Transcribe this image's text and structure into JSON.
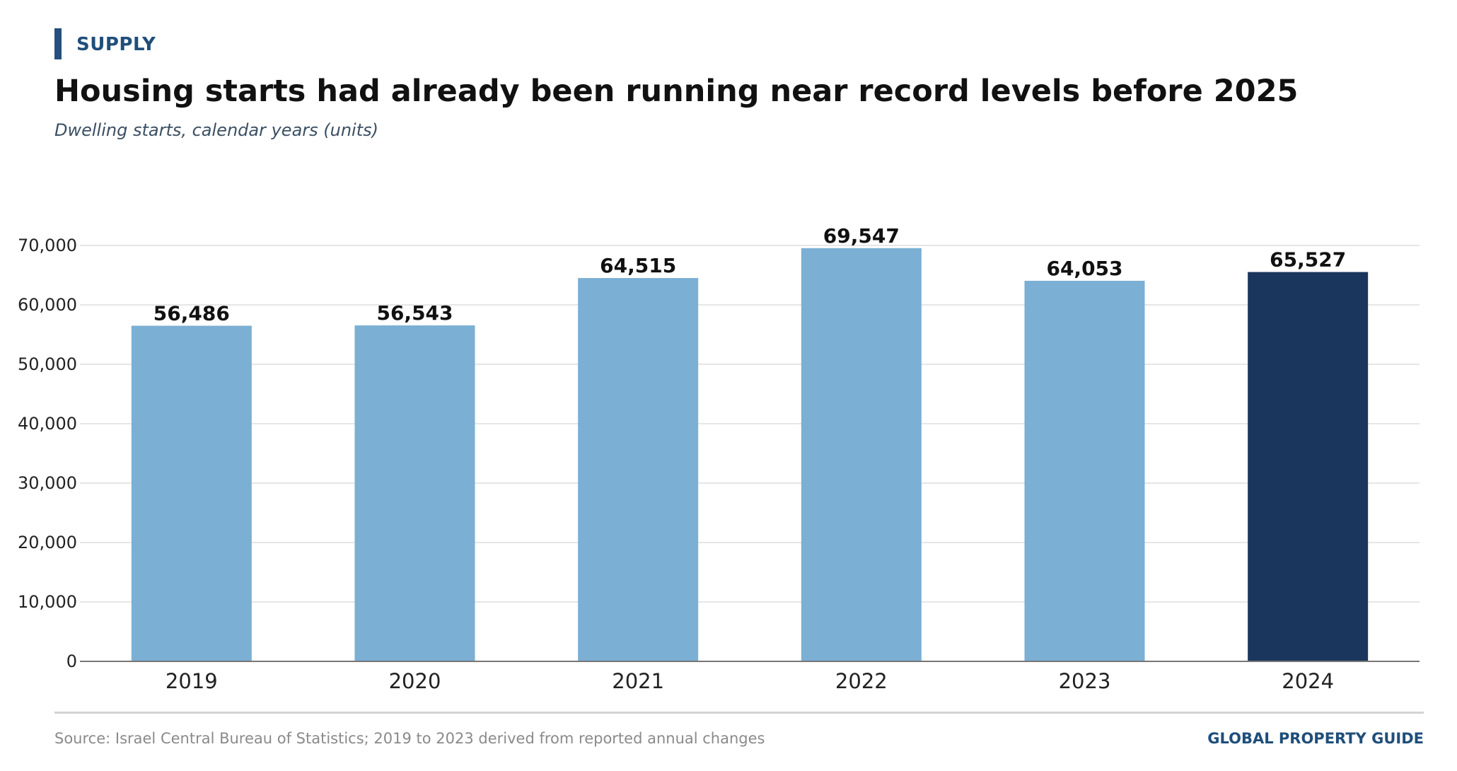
{
  "header": {
    "kicker": "SUPPLY",
    "title": "Housing starts had already been running near record levels before 2025",
    "subtitle": "Dwelling starts, calendar years (units)"
  },
  "footer": {
    "source": "Source: Israel Central Bureau of Statistics; 2019 to 2023 derived from reported annual changes",
    "brand": "GLOBAL PROPERTY GUIDE"
  },
  "colors": {
    "accent": "#244f7f",
    "bar": "#7bafd4",
    "bar_highlight": "#1b365d",
    "grid": "#dddddd",
    "axis": "#777777"
  },
  "chart_data": {
    "type": "bar",
    "title": "Housing starts had already been running near record levels before 2025",
    "subtitle": "Dwelling starts, calendar years (units)",
    "xlabel": "",
    "ylabel": "",
    "categories": [
      "2019",
      "2020",
      "2021",
      "2022",
      "2023",
      "2024"
    ],
    "values": [
      56486,
      56543,
      64515,
      69547,
      64053,
      65527
    ],
    "data_labels": [
      "56,486",
      "56,543",
      "64,515",
      "69,547",
      "64,053",
      "65,527"
    ],
    "highlight_category": "2024",
    "ylim": [
      0,
      70000
    ],
    "yticks": [
      0,
      10000,
      20000,
      30000,
      40000,
      50000,
      60000,
      70000
    ],
    "ytick_labels": [
      "0",
      "10,000",
      "20,000",
      "30,000",
      "40,000",
      "50,000",
      "60,000",
      "70,000"
    ],
    "grid": true,
    "legend": "none"
  }
}
